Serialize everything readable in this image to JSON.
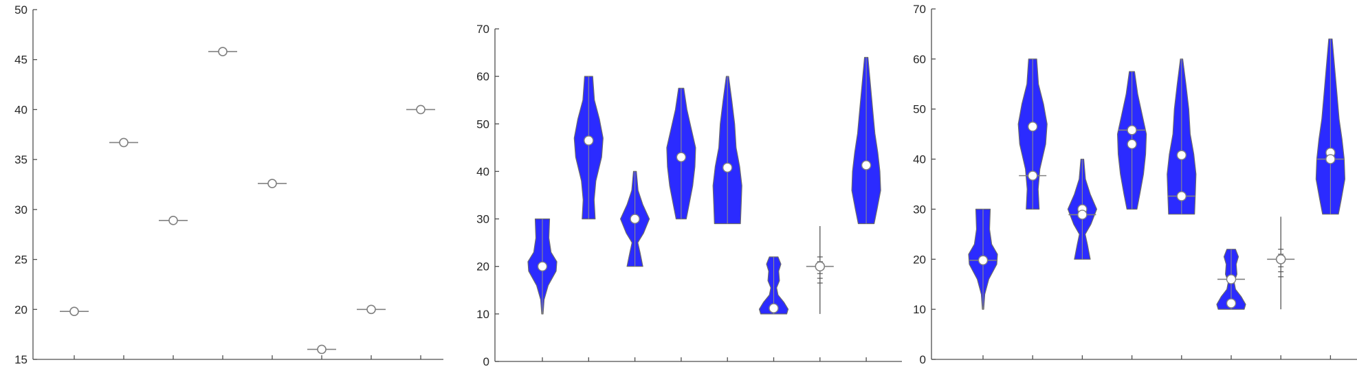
{
  "chart_data": [
    {
      "type": "scatter",
      "ylim": [
        15,
        50
      ],
      "yticks": [
        15,
        20,
        25,
        30,
        35,
        40,
        45,
        50
      ],
      "point_color": "#ffffff",
      "line_color": "#808080",
      "points": [
        {
          "x": 1,
          "median": 19.8
        },
        {
          "x": 2,
          "median": 36.7
        },
        {
          "x": 3,
          "median": 28.9
        },
        {
          "x": 4,
          "median": 45.8
        },
        {
          "x": 5,
          "median": 32.6
        },
        {
          "x": 6,
          "median": 16.0
        },
        {
          "x": 7,
          "median": 20.0
        },
        {
          "x": 8,
          "median": 40.0
        }
      ]
    },
    {
      "type": "violin",
      "ylim": [
        0,
        70
      ],
      "yticks": [
        0,
        10,
        20,
        30,
        40,
        50,
        60,
        70
      ],
      "fill_color": "#2b2bff",
      "line_color": "#808080",
      "violins": [
        {
          "x": 1,
          "min": 10,
          "max": 30,
          "markers": [
            20.0
          ],
          "profile": [
            [
              10,
              0.05
            ],
            [
              13,
              0.12
            ],
            [
              16,
              0.4
            ],
            [
              19,
              0.95
            ],
            [
              21,
              1.0
            ],
            [
              23,
              0.6
            ],
            [
              26,
              0.45
            ],
            [
              30,
              0.5
            ]
          ]
        },
        {
          "x": 2,
          "min": 30,
          "max": 60,
          "markers": [
            46.5
          ],
          "profile": [
            [
              30,
              0.45
            ],
            [
              34,
              0.38
            ],
            [
              38,
              0.5
            ],
            [
              43,
              0.9
            ],
            [
              47,
              1.0
            ],
            [
              51,
              0.75
            ],
            [
              55,
              0.4
            ],
            [
              60,
              0.28
            ]
          ]
        },
        {
          "x": 3,
          "min": 20,
          "max": 40,
          "markers": [
            30.0
          ],
          "profile": [
            [
              20,
              0.55
            ],
            [
              23,
              0.35
            ],
            [
              25,
              0.2
            ],
            [
              27,
              0.6
            ],
            [
              30,
              1.0
            ],
            [
              33,
              0.55
            ],
            [
              36,
              0.22
            ],
            [
              40,
              0.1
            ]
          ]
        },
        {
          "x": 4,
          "min": 30,
          "max": 57.5,
          "markers": [
            43.0
          ],
          "profile": [
            [
              30,
              0.35
            ],
            [
              33,
              0.55
            ],
            [
              37,
              0.8
            ],
            [
              41,
              0.95
            ],
            [
              45,
              1.0
            ],
            [
              49,
              0.7
            ],
            [
              53,
              0.4
            ],
            [
              57.5,
              0.18
            ]
          ]
        },
        {
          "x": 5,
          "min": 29,
          "max": 60,
          "markers": [
            40.8
          ],
          "profile": [
            [
              29,
              0.9
            ],
            [
              33,
              0.95
            ],
            [
              37,
              1.0
            ],
            [
              41,
              0.85
            ],
            [
              45,
              0.6
            ],
            [
              50,
              0.5
            ],
            [
              55,
              0.3
            ],
            [
              60,
              0.08
            ]
          ]
        },
        {
          "x": 6,
          "min": 10,
          "max": 22,
          "markers": [
            11.2
          ],
          "profile": [
            [
              10,
              0.9
            ],
            [
              11,
              1.0
            ],
            [
              12.5,
              0.7
            ],
            [
              14,
              0.3
            ],
            [
              15.5,
              0.2
            ],
            [
              17,
              0.4
            ],
            [
              19,
              0.35
            ],
            [
              20.5,
              0.5
            ],
            [
              22,
              0.3
            ]
          ]
        },
        {
          "x": 7,
          "type": "ticks",
          "min": 10,
          "max": 28.5,
          "markers": [
            20.0
          ],
          "ticks": [
            16.5,
            17.5,
            18.5,
            19.5,
            21.0,
            22.0
          ]
        },
        {
          "x": 8,
          "min": 29,
          "max": 64,
          "markers": [
            41.3
          ],
          "profile": [
            [
              29,
              0.55
            ],
            [
              32,
              0.75
            ],
            [
              36,
              1.0
            ],
            [
              40,
              0.95
            ],
            [
              44,
              0.8
            ],
            [
              48,
              0.6
            ],
            [
              53,
              0.45
            ],
            [
              58,
              0.3
            ],
            [
              64,
              0.12
            ]
          ]
        }
      ]
    },
    {
      "type": "violin",
      "ylim": [
        0,
        70
      ],
      "yticks": [
        0,
        10,
        20,
        30,
        40,
        50,
        60,
        70
      ],
      "fill_color": "#2b2bff",
      "line_color": "#808080",
      "violins": [
        {
          "x": 1,
          "min": 10,
          "max": 30,
          "markers": [
            19.8
          ],
          "hline": 19.8,
          "profile": [
            [
              10,
              0.05
            ],
            [
              13,
              0.12
            ],
            [
              16,
              0.4
            ],
            [
              19,
              0.95
            ],
            [
              21,
              1.0
            ],
            [
              23,
              0.6
            ],
            [
              26,
              0.45
            ],
            [
              30,
              0.5
            ]
          ]
        },
        {
          "x": 2,
          "min": 30,
          "max": 60,
          "markers": [
            46.5,
            36.7
          ],
          "hline": 36.7,
          "profile": [
            [
              30,
              0.45
            ],
            [
              34,
              0.38
            ],
            [
              38,
              0.5
            ],
            [
              43,
              0.9
            ],
            [
              47,
              1.0
            ],
            [
              51,
              0.75
            ],
            [
              55,
              0.4
            ],
            [
              60,
              0.28
            ]
          ]
        },
        {
          "x": 3,
          "min": 20,
          "max": 40,
          "markers": [
            30.0,
            28.9
          ],
          "hline": 28.9,
          "profile": [
            [
              20,
              0.55
            ],
            [
              23,
              0.35
            ],
            [
              25,
              0.2
            ],
            [
              27,
              0.6
            ],
            [
              30,
              1.0
            ],
            [
              33,
              0.55
            ],
            [
              36,
              0.22
            ],
            [
              40,
              0.1
            ]
          ]
        },
        {
          "x": 4,
          "min": 30,
          "max": 57.5,
          "markers": [
            45.8,
            43.0
          ],
          "hline": 45.8,
          "profile": [
            [
              30,
              0.35
            ],
            [
              33,
              0.55
            ],
            [
              37,
              0.8
            ],
            [
              41,
              0.95
            ],
            [
              45,
              1.0
            ],
            [
              49,
              0.7
            ],
            [
              53,
              0.4
            ],
            [
              57.5,
              0.18
            ]
          ]
        },
        {
          "x": 5,
          "min": 29,
          "max": 60,
          "markers": [
            40.8,
            32.6
          ],
          "hline": 32.6,
          "profile": [
            [
              29,
              0.9
            ],
            [
              33,
              0.95
            ],
            [
              37,
              1.0
            ],
            [
              41,
              0.85
            ],
            [
              45,
              0.6
            ],
            [
              50,
              0.5
            ],
            [
              55,
              0.3
            ],
            [
              60,
              0.08
            ]
          ]
        },
        {
          "x": 6,
          "min": 10,
          "max": 22,
          "markers": [
            16.0,
            11.2
          ],
          "hline": 16.0,
          "profile": [
            [
              10,
              0.9
            ],
            [
              11,
              1.0
            ],
            [
              12.5,
              0.7
            ],
            [
              14,
              0.3
            ],
            [
              15.5,
              0.2
            ],
            [
              17,
              0.4
            ],
            [
              19,
              0.35
            ],
            [
              20.5,
              0.5
            ],
            [
              22,
              0.3
            ]
          ]
        },
        {
          "x": 7,
          "type": "ticks",
          "min": 10,
          "max": 28.5,
          "markers": [
            20.0
          ],
          "hline": 20.0,
          "ticks": [
            16.5,
            17.5,
            18.5,
            19.5,
            21.0,
            22.0
          ]
        },
        {
          "x": 8,
          "min": 29,
          "max": 64,
          "markers": [
            41.3,
            40.0
          ],
          "hline": 40.0,
          "profile": [
            [
              29,
              0.55
            ],
            [
              32,
              0.75
            ],
            [
              36,
              1.0
            ],
            [
              40,
              0.95
            ],
            [
              44,
              0.8
            ],
            [
              48,
              0.6
            ],
            [
              53,
              0.45
            ],
            [
              58,
              0.3
            ],
            [
              64,
              0.12
            ]
          ]
        }
      ]
    }
  ]
}
